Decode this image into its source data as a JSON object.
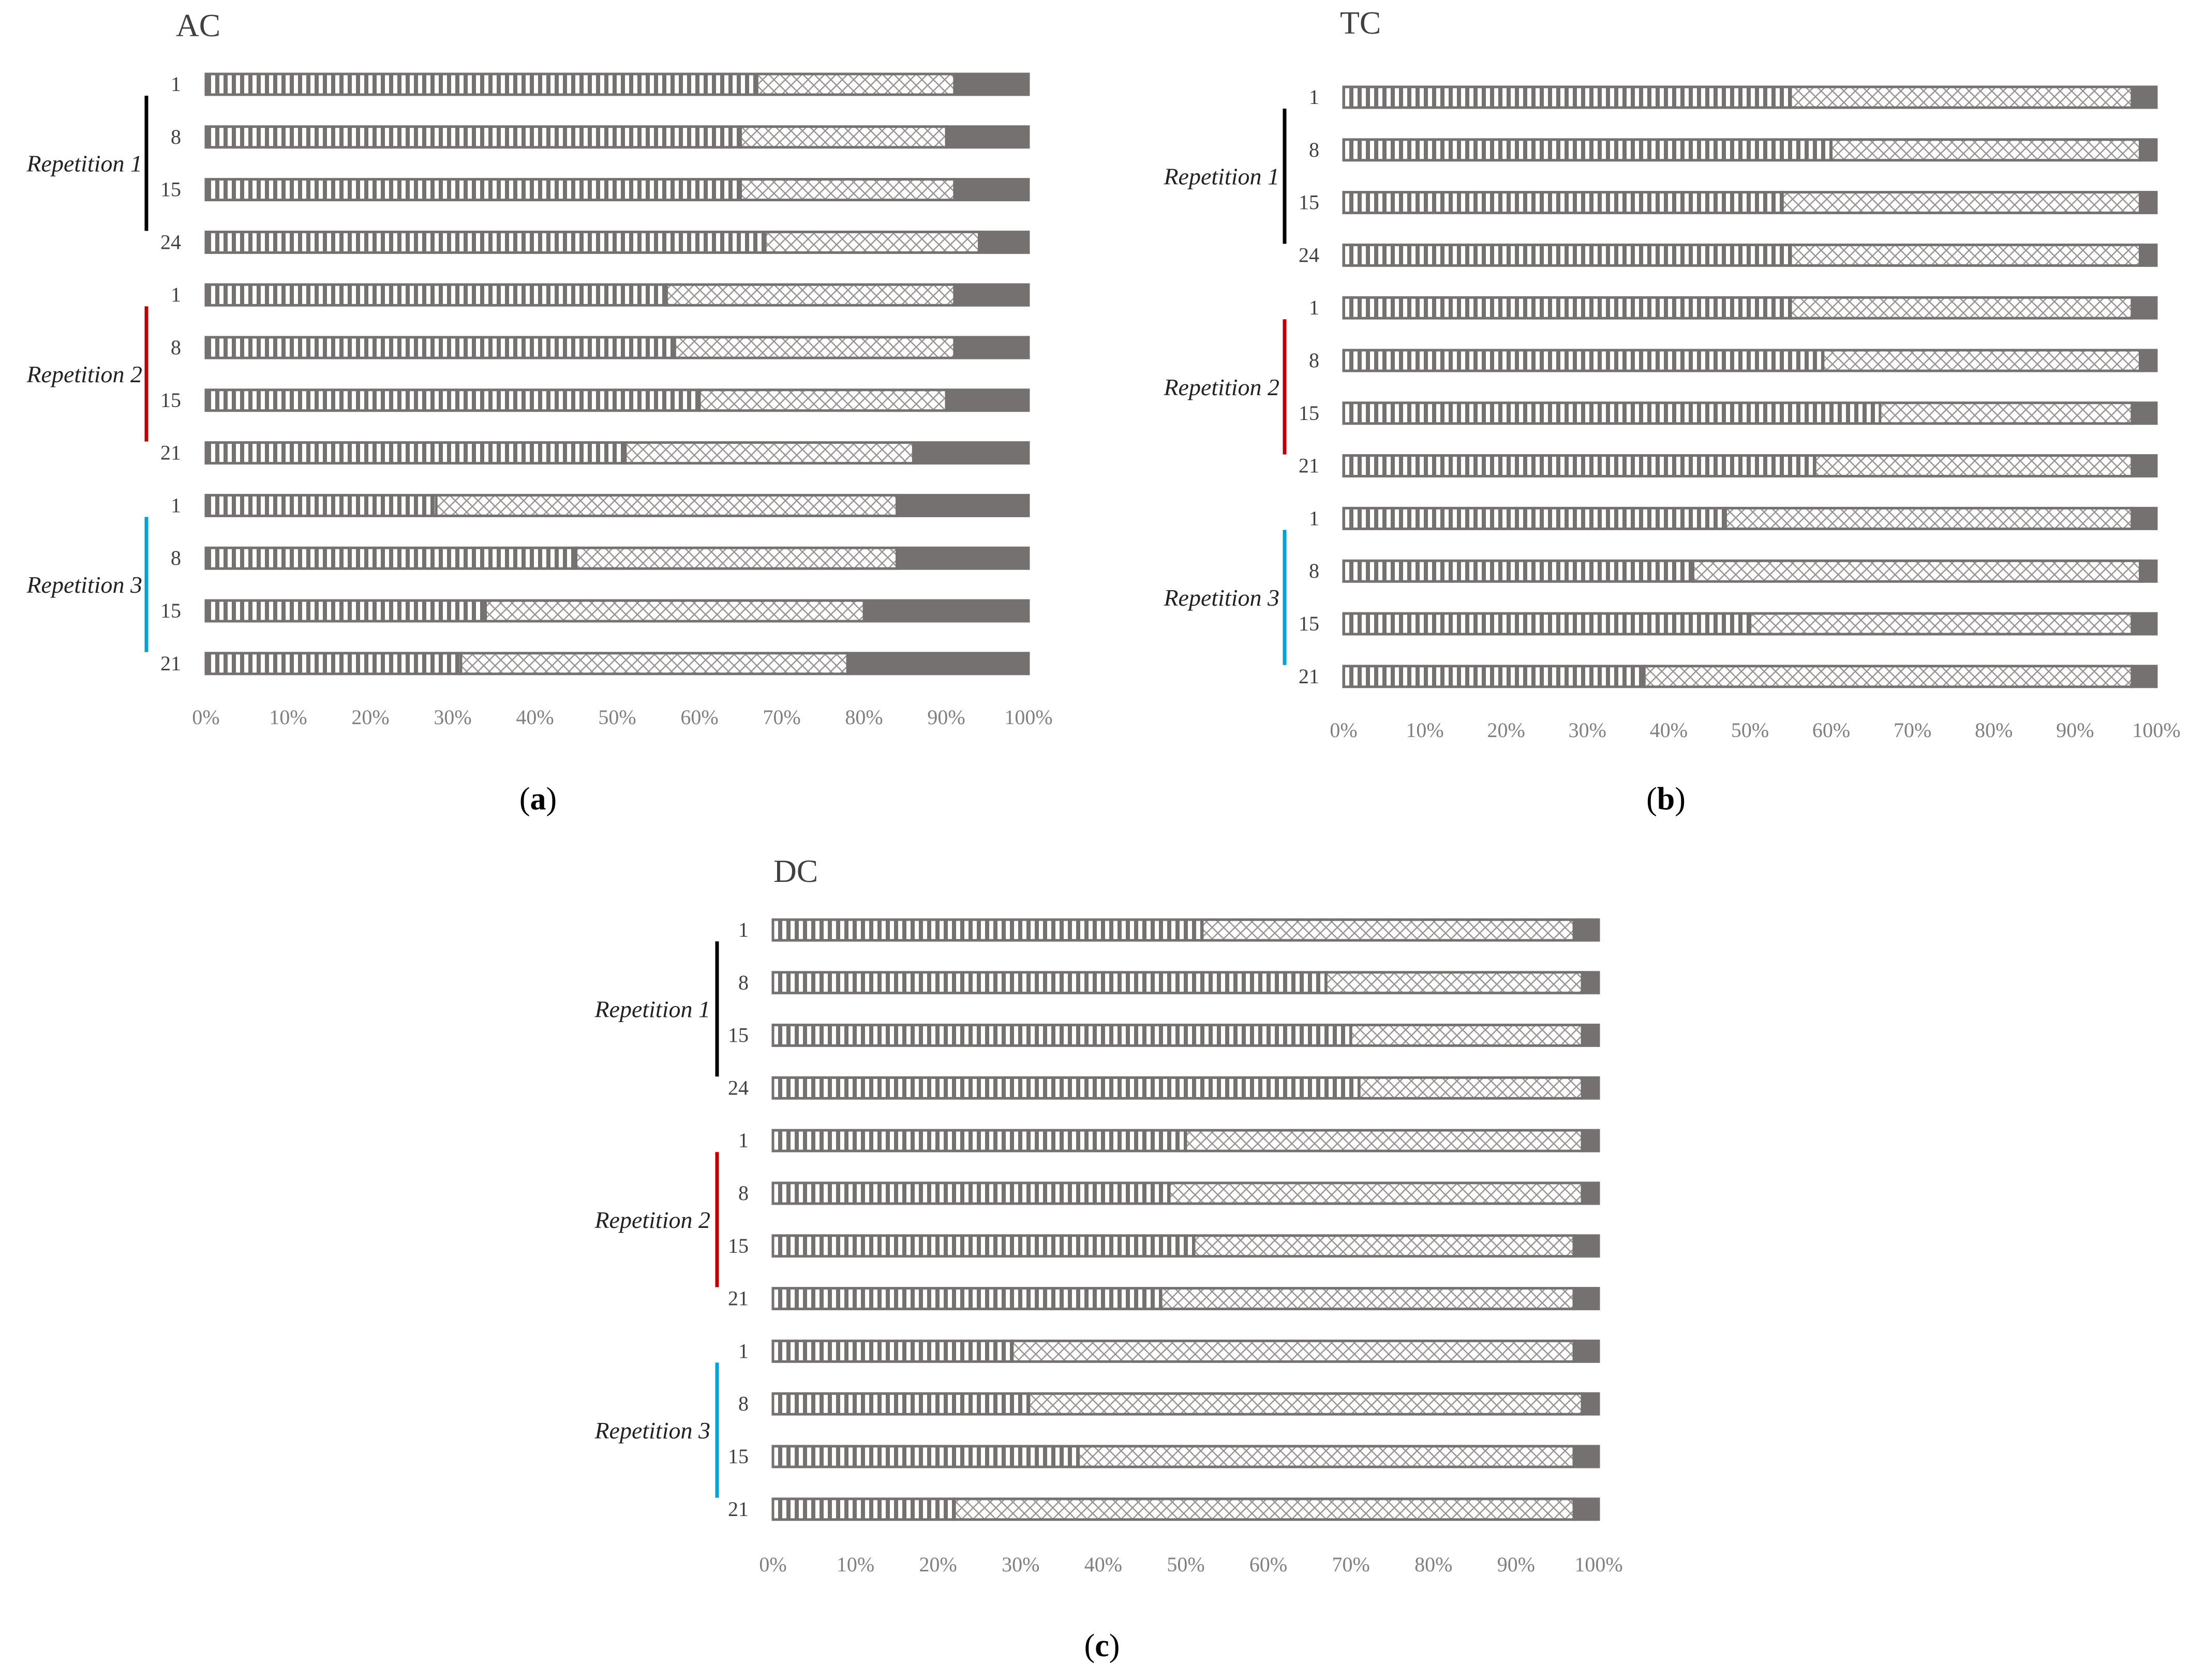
{
  "colors": {
    "dark": "#767171",
    "stripe_fill": "#ffffff",
    "cross_line": "#9a9595",
    "axis_tick": "#808080",
    "rep1_bracket": "#000000",
    "rep2_bracket": "#c00000",
    "rep3_bracket": "#00a2d8"
  },
  "segment_names": [
    "vertical-stripe",
    "diagonal-cross",
    "solid"
  ],
  "chart_data": [
    {
      "type": "bar",
      "orientation": "horizontal",
      "stacked": true,
      "percent": true,
      "title": "AC",
      "caption": "a",
      "groups": [
        "Repetition 1",
        "Repetition 2",
        "Repetition 3"
      ],
      "categories": [
        "1",
        "8",
        "15",
        "24",
        "1",
        "8",
        "15",
        "21",
        "1",
        "8",
        "15",
        "21"
      ],
      "category_group": [
        0,
        0,
        0,
        0,
        1,
        1,
        1,
        1,
        2,
        2,
        2,
        2
      ],
      "series": [
        {
          "name": "vertical-stripe",
          "values": [
            67,
            65,
            65,
            68,
            56,
            57,
            60,
            51,
            28,
            45,
            34,
            31
          ]
        },
        {
          "name": "diagonal-cross",
          "values": [
            24,
            25,
            26,
            26,
            35,
            34,
            30,
            35,
            56,
            39,
            46,
            47
          ]
        },
        {
          "name": "solid",
          "values": [
            9,
            10,
            9,
            6,
            9,
            9,
            10,
            14,
            16,
            16,
            20,
            22
          ]
        }
      ],
      "xticks": [
        "0%",
        "10%",
        "20%",
        "30%",
        "40%",
        "50%",
        "60%",
        "70%",
        "80%",
        "90%",
        "100%"
      ],
      "xlim": [
        0,
        100
      ]
    },
    {
      "type": "bar",
      "orientation": "horizontal",
      "stacked": true,
      "percent": true,
      "title": "TC",
      "caption": "b",
      "groups": [
        "Repetition 1",
        "Repetition 2",
        "Repetition 3"
      ],
      "categories": [
        "1",
        "8",
        "15",
        "24",
        "1",
        "8",
        "15",
        "21",
        "1",
        "8",
        "15",
        "21"
      ],
      "category_group": [
        0,
        0,
        0,
        0,
        1,
        1,
        1,
        1,
        2,
        2,
        2,
        2
      ],
      "series": [
        {
          "name": "vertical-stripe",
          "values": [
            55,
            60,
            54,
            55,
            55,
            59,
            66,
            58,
            47,
            43,
            50,
            37
          ]
        },
        {
          "name": "diagonal-cross",
          "values": [
            42,
            38,
            44,
            43,
            42,
            39,
            31,
            39,
            50,
            55,
            47,
            60
          ]
        },
        {
          "name": "solid",
          "values": [
            3,
            2,
            2,
            2,
            3,
            2,
            3,
            3,
            3,
            2,
            3,
            3
          ]
        }
      ],
      "xticks": [
        "0%",
        "10%",
        "20%",
        "30%",
        "40%",
        "50%",
        "60%",
        "70%",
        "80%",
        "90%",
        "100%"
      ],
      "xlim": [
        0,
        100
      ]
    },
    {
      "type": "bar",
      "orientation": "horizontal",
      "stacked": true,
      "percent": true,
      "title": "DC",
      "caption": "c",
      "groups": [
        "Repetition 1",
        "Repetition 2",
        "Repetition 3"
      ],
      "categories": [
        "1",
        "8",
        "15",
        "24",
        "1",
        "8",
        "15",
        "21",
        "1",
        "8",
        "15",
        "21"
      ],
      "category_group": [
        0,
        0,
        0,
        0,
        1,
        1,
        1,
        1,
        2,
        2,
        2,
        2
      ],
      "series": [
        {
          "name": "vertical-stripe",
          "values": [
            52,
            67,
            70,
            71,
            50,
            48,
            51,
            47,
            29,
            31,
            37,
            22
          ]
        },
        {
          "name": "diagonal-cross",
          "values": [
            45,
            31,
            28,
            27,
            48,
            50,
            46,
            50,
            68,
            67,
            60,
            75
          ]
        },
        {
          "name": "solid",
          "values": [
            3,
            2,
            2,
            2,
            2,
            2,
            3,
            3,
            3,
            2,
            3,
            3
          ]
        }
      ],
      "xticks": [
        "0%",
        "10%",
        "20%",
        "30%",
        "40%",
        "50%",
        "60%",
        "70%",
        "80%",
        "90%",
        "100%"
      ],
      "xlim": [
        0,
        100
      ]
    }
  ]
}
